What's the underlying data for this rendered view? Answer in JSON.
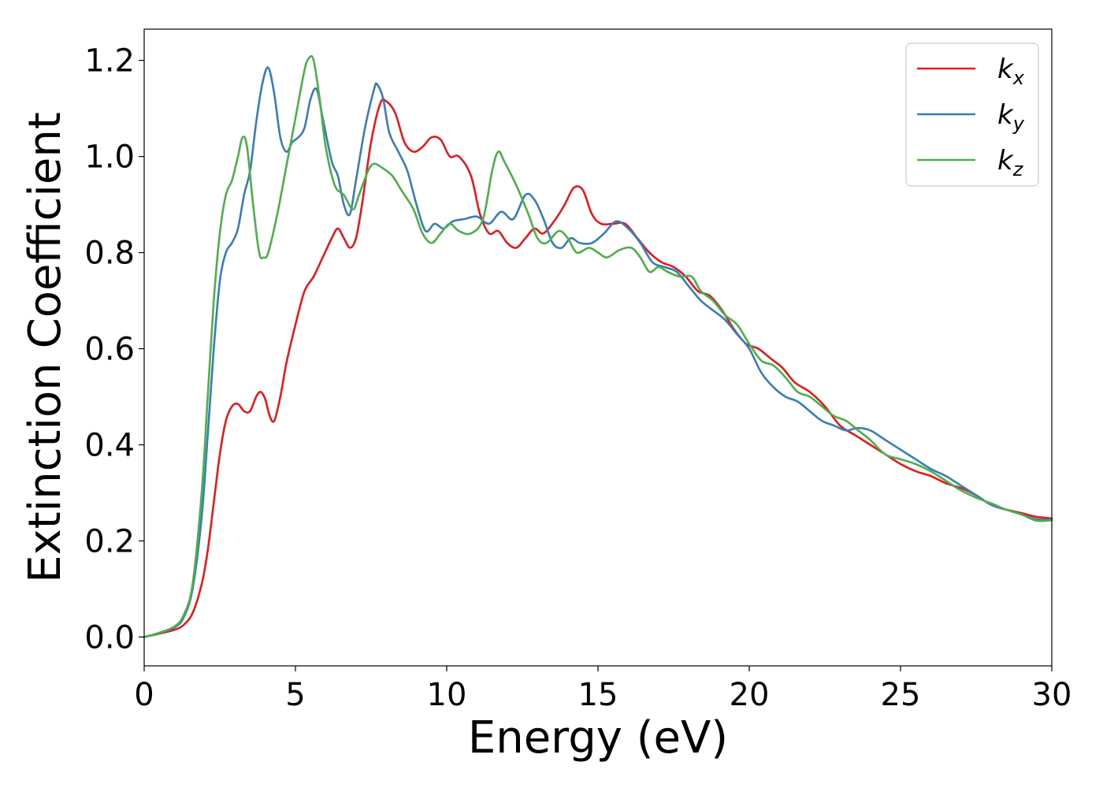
{
  "chart_data": {
    "type": "line",
    "xlabel": "Energy (eV)",
    "ylabel": "Extinction Coefficient",
    "xlim": [
      0,
      30
    ],
    "ylim": [
      -0.06,
      1.265
    ],
    "xticks": [
      0,
      5,
      10,
      15,
      20,
      25,
      30
    ],
    "yticks": [
      0.0,
      0.2,
      0.4,
      0.6,
      0.8,
      1.0,
      1.2
    ],
    "xtick_labels": [
      "0",
      "5",
      "10",
      "15",
      "20",
      "25",
      "30"
    ],
    "ytick_labels": [
      "0.0",
      "0.2",
      "0.4",
      "0.6",
      "0.8",
      "1.0",
      "1.2"
    ],
    "grid": false,
    "legend_position": "top-right",
    "series": [
      {
        "name": "k_x",
        "label_base": "k",
        "label_sub": "x",
        "color": "#e41a1c",
        "points": [
          [
            0,
            0
          ],
          [
            0.5,
            0.007
          ],
          [
            1,
            0.015
          ],
          [
            1.3,
            0.025
          ],
          [
            1.6,
            0.05
          ],
          [
            1.9,
            0.11
          ],
          [
            2.1,
            0.18
          ],
          [
            2.3,
            0.28
          ],
          [
            2.5,
            0.38
          ],
          [
            2.7,
            0.45
          ],
          [
            2.9,
            0.48
          ],
          [
            3.1,
            0.485
          ],
          [
            3.3,
            0.47
          ],
          [
            3.5,
            0.47
          ],
          [
            3.7,
            0.5
          ],
          [
            3.85,
            0.51
          ],
          [
            4.0,
            0.495
          ],
          [
            4.15,
            0.46
          ],
          [
            4.3,
            0.45
          ],
          [
            4.5,
            0.5
          ],
          [
            4.7,
            0.57
          ],
          [
            5.0,
            0.65
          ],
          [
            5.3,
            0.72
          ],
          [
            5.6,
            0.75
          ],
          [
            5.9,
            0.79
          ],
          [
            6.2,
            0.83
          ],
          [
            6.4,
            0.85
          ],
          [
            6.6,
            0.83
          ],
          [
            6.8,
            0.81
          ],
          [
            7.0,
            0.83
          ],
          [
            7.2,
            0.9
          ],
          [
            7.5,
            1.03
          ],
          [
            7.8,
            1.11
          ],
          [
            8.0,
            1.115
          ],
          [
            8.3,
            1.09
          ],
          [
            8.6,
            1.03
          ],
          [
            8.9,
            1.01
          ],
          [
            9.2,
            1.02
          ],
          [
            9.5,
            1.04
          ],
          [
            9.8,
            1.035
          ],
          [
            10.1,
            1.0
          ],
          [
            10.4,
            1.0
          ],
          [
            10.8,
            0.96
          ],
          [
            11.1,
            0.88
          ],
          [
            11.4,
            0.84
          ],
          [
            11.7,
            0.845
          ],
          [
            12.0,
            0.82
          ],
          [
            12.3,
            0.81
          ],
          [
            12.6,
            0.83
          ],
          [
            12.9,
            0.85
          ],
          [
            13.2,
            0.84
          ],
          [
            13.6,
            0.87
          ],
          [
            13.9,
            0.9
          ],
          [
            14.2,
            0.935
          ],
          [
            14.5,
            0.93
          ],
          [
            14.8,
            0.88
          ],
          [
            15.1,
            0.86
          ],
          [
            15.5,
            0.86
          ],
          [
            15.9,
            0.86
          ],
          [
            16.3,
            0.83
          ],
          [
            16.7,
            0.8
          ],
          [
            17.1,
            0.78
          ],
          [
            17.5,
            0.77
          ],
          [
            17.9,
            0.75
          ],
          [
            18.3,
            0.72
          ],
          [
            18.7,
            0.71
          ],
          [
            19.1,
            0.68
          ],
          [
            19.5,
            0.64
          ],
          [
            19.9,
            0.61
          ],
          [
            20.3,
            0.6
          ],
          [
            20.7,
            0.58
          ],
          [
            21.1,
            0.56
          ],
          [
            21.5,
            0.53
          ],
          [
            22.0,
            0.51
          ],
          [
            22.5,
            0.48
          ],
          [
            23.0,
            0.44
          ],
          [
            23.5,
            0.42
          ],
          [
            24.0,
            0.4
          ],
          [
            24.5,
            0.38
          ],
          [
            25.0,
            0.36
          ],
          [
            25.5,
            0.345
          ],
          [
            26.0,
            0.335
          ],
          [
            26.5,
            0.32
          ],
          [
            27.0,
            0.31
          ],
          [
            27.5,
            0.295
          ],
          [
            28.0,
            0.275
          ],
          [
            28.5,
            0.265
          ],
          [
            29.0,
            0.258
          ],
          [
            29.5,
            0.25
          ],
          [
            30.0,
            0.247
          ]
        ]
      },
      {
        "name": "k_y",
        "label_base": "k",
        "label_sub": "y",
        "color": "#377eb8",
        "points": [
          [
            0,
            0
          ],
          [
            0.5,
            0.008
          ],
          [
            1,
            0.02
          ],
          [
            1.3,
            0.04
          ],
          [
            1.6,
            0.1
          ],
          [
            1.9,
            0.25
          ],
          [
            2.1,
            0.42
          ],
          [
            2.3,
            0.6
          ],
          [
            2.5,
            0.74
          ],
          [
            2.7,
            0.8
          ],
          [
            2.9,
            0.82
          ],
          [
            3.1,
            0.85
          ],
          [
            3.3,
            0.92
          ],
          [
            3.5,
            0.97
          ],
          [
            3.7,
            1.07
          ],
          [
            3.9,
            1.15
          ],
          [
            4.1,
            1.185
          ],
          [
            4.3,
            1.13
          ],
          [
            4.5,
            1.04
          ],
          [
            4.7,
            1.01
          ],
          [
            4.9,
            1.03
          ],
          [
            5.1,
            1.04
          ],
          [
            5.3,
            1.06
          ],
          [
            5.5,
            1.12
          ],
          [
            5.7,
            1.14
          ],
          [
            5.9,
            1.08
          ],
          [
            6.2,
            0.99
          ],
          [
            6.4,
            0.96
          ],
          [
            6.6,
            0.9
          ],
          [
            6.8,
            0.88
          ],
          [
            7.0,
            0.95
          ],
          [
            7.3,
            1.06
          ],
          [
            7.6,
            1.14
          ],
          [
            7.7,
            1.15
          ],
          [
            7.9,
            1.12
          ],
          [
            8.1,
            1.05
          ],
          [
            8.4,
            1.01
          ],
          [
            8.7,
            0.97
          ],
          [
            9.0,
            0.9
          ],
          [
            9.3,
            0.845
          ],
          [
            9.6,
            0.86
          ],
          [
            9.9,
            0.85
          ],
          [
            10.2,
            0.865
          ],
          [
            10.6,
            0.87
          ],
          [
            11.0,
            0.875
          ],
          [
            11.4,
            0.86
          ],
          [
            11.8,
            0.885
          ],
          [
            12.2,
            0.87
          ],
          [
            12.6,
            0.92
          ],
          [
            12.9,
            0.91
          ],
          [
            13.2,
            0.87
          ],
          [
            13.5,
            0.82
          ],
          [
            13.8,
            0.81
          ],
          [
            14.1,
            0.83
          ],
          [
            14.4,
            0.82
          ],
          [
            14.8,
            0.82
          ],
          [
            15.2,
            0.84
          ],
          [
            15.6,
            0.865
          ],
          [
            16.0,
            0.85
          ],
          [
            16.4,
            0.82
          ],
          [
            16.8,
            0.78
          ],
          [
            17.2,
            0.77
          ],
          [
            17.6,
            0.76
          ],
          [
            18.0,
            0.73
          ],
          [
            18.4,
            0.7
          ],
          [
            18.8,
            0.68
          ],
          [
            19.2,
            0.66
          ],
          [
            19.6,
            0.63
          ],
          [
            20.0,
            0.6
          ],
          [
            20.4,
            0.55
          ],
          [
            20.8,
            0.52
          ],
          [
            21.2,
            0.5
          ],
          [
            21.6,
            0.49
          ],
          [
            22.0,
            0.47
          ],
          [
            22.4,
            0.45
          ],
          [
            22.8,
            0.44
          ],
          [
            23.2,
            0.43
          ],
          [
            23.6,
            0.435
          ],
          [
            24.0,
            0.43
          ],
          [
            24.5,
            0.41
          ],
          [
            25.0,
            0.39
          ],
          [
            25.5,
            0.37
          ],
          [
            26.0,
            0.35
          ],
          [
            26.5,
            0.335
          ],
          [
            27.0,
            0.315
          ],
          [
            27.5,
            0.295
          ],
          [
            28.0,
            0.275
          ],
          [
            28.5,
            0.265
          ],
          [
            29.0,
            0.255
          ],
          [
            29.5,
            0.245
          ],
          [
            30.0,
            0.245
          ]
        ]
      },
      {
        "name": "k_z",
        "label_base": "k",
        "label_sub": "z",
        "color": "#4daf4a",
        "points": [
          [
            0,
            0
          ],
          [
            0.5,
            0.009
          ],
          [
            1,
            0.022
          ],
          [
            1.3,
            0.045
          ],
          [
            1.6,
            0.11
          ],
          [
            1.9,
            0.3
          ],
          [
            2.1,
            0.5
          ],
          [
            2.3,
            0.7
          ],
          [
            2.5,
            0.84
          ],
          [
            2.7,
            0.92
          ],
          [
            2.9,
            0.95
          ],
          [
            3.1,
            1.0
          ],
          [
            3.25,
            1.04
          ],
          [
            3.4,
            1.02
          ],
          [
            3.6,
            0.9
          ],
          [
            3.8,
            0.8
          ],
          [
            3.95,
            0.79
          ],
          [
            4.1,
            0.8
          ],
          [
            4.4,
            0.88
          ],
          [
            4.7,
            0.98
          ],
          [
            5.0,
            1.08
          ],
          [
            5.3,
            1.18
          ],
          [
            5.45,
            1.205
          ],
          [
            5.6,
            1.2
          ],
          [
            5.8,
            1.12
          ],
          [
            6.0,
            1.02
          ],
          [
            6.3,
            0.94
          ],
          [
            6.6,
            0.92
          ],
          [
            6.9,
            0.89
          ],
          [
            7.1,
            0.92
          ],
          [
            7.4,
            0.97
          ],
          [
            7.6,
            0.985
          ],
          [
            7.9,
            0.975
          ],
          [
            8.2,
            0.96
          ],
          [
            8.5,
            0.93
          ],
          [
            8.9,
            0.89
          ],
          [
            9.2,
            0.84
          ],
          [
            9.5,
            0.82
          ],
          [
            9.8,
            0.84
          ],
          [
            10.1,
            0.86
          ],
          [
            10.4,
            0.845
          ],
          [
            10.8,
            0.84
          ],
          [
            11.2,
            0.87
          ],
          [
            11.5,
            0.97
          ],
          [
            11.7,
            1.01
          ],
          [
            11.9,
            0.99
          ],
          [
            12.3,
            0.94
          ],
          [
            12.7,
            0.88
          ],
          [
            13.0,
            0.83
          ],
          [
            13.3,
            0.82
          ],
          [
            13.7,
            0.845
          ],
          [
            14.0,
            0.83
          ],
          [
            14.3,
            0.8
          ],
          [
            14.7,
            0.81
          ],
          [
            15.0,
            0.8
          ],
          [
            15.3,
            0.79
          ],
          [
            15.7,
            0.805
          ],
          [
            16.1,
            0.81
          ],
          [
            16.4,
            0.79
          ],
          [
            16.7,
            0.76
          ],
          [
            17.0,
            0.77
          ],
          [
            17.3,
            0.76
          ],
          [
            17.7,
            0.75
          ],
          [
            18.1,
            0.75
          ],
          [
            18.4,
            0.72
          ],
          [
            18.8,
            0.7
          ],
          [
            19.2,
            0.67
          ],
          [
            19.6,
            0.65
          ],
          [
            20.0,
            0.61
          ],
          [
            20.4,
            0.575
          ],
          [
            20.8,
            0.565
          ],
          [
            21.2,
            0.54
          ],
          [
            21.6,
            0.51
          ],
          [
            22.0,
            0.5
          ],
          [
            22.4,
            0.48
          ],
          [
            22.8,
            0.46
          ],
          [
            23.2,
            0.45
          ],
          [
            23.6,
            0.43
          ],
          [
            24.0,
            0.41
          ],
          [
            24.5,
            0.38
          ],
          [
            25.0,
            0.37
          ],
          [
            25.5,
            0.36
          ],
          [
            26.0,
            0.345
          ],
          [
            26.5,
            0.325
          ],
          [
            27.0,
            0.305
          ],
          [
            27.5,
            0.29
          ],
          [
            28.0,
            0.278
          ],
          [
            28.5,
            0.265
          ],
          [
            29.0,
            0.255
          ],
          [
            29.5,
            0.242
          ],
          [
            30.0,
            0.243
          ]
        ]
      }
    ]
  }
}
